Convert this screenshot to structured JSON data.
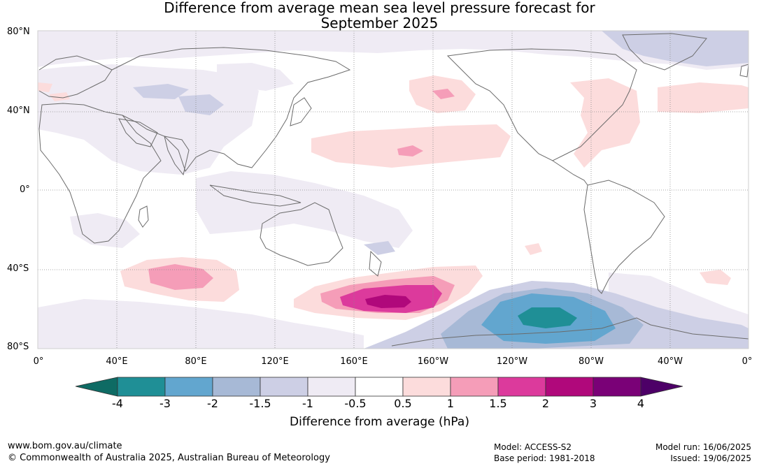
{
  "title_line1": "Difference from average mean sea level pressure forecast for",
  "title_line2": "September 2025",
  "lat_labels": [
    "80°N",
    "40°N",
    "0°",
    "40°S",
    "80°S"
  ],
  "lon_labels": [
    "0°",
    "40°E",
    "80°E",
    "120°E",
    "160°E",
    "160°W",
    "120°W",
    "80°W",
    "40°W",
    "0°"
  ],
  "colorbar": {
    "label": "Difference from average (hPa)",
    "ticks": [
      "-4",
      "-3",
      "-2",
      "-1.5",
      "-1",
      "-0.5",
      "0.5",
      "1",
      "1.5",
      "2",
      "3",
      "4"
    ],
    "colors": {
      "lt_m4": "#0e6b64",
      "m4_m3": "#1f8f96",
      "m3_m2": "#62a6cf",
      "m2_m15": "#a7b9d6",
      "m15_m1": "#cdcfe5",
      "m1_m05": "#efebf4",
      "m05_05": "#ffffff",
      "p05_1": "#fcdcdc",
      "p1_15": "#f59db8",
      "p15_2": "#dc3a9c",
      "p2_3": "#b0087b",
      "p3_4": "#7a0177",
      "gt_4": "#4d0067"
    }
  },
  "footer": {
    "url": "www.bom.gov.au/climate",
    "copyright": "© Commonwealth of Australia 2025, Australian Bureau of Meteorology",
    "model": "Model: ACCESS-S2",
    "base_period": "Base period: 1981-2018",
    "model_run": "Model run: 16/06/2025",
    "issued": "Issued: 19/06/2025"
  }
}
